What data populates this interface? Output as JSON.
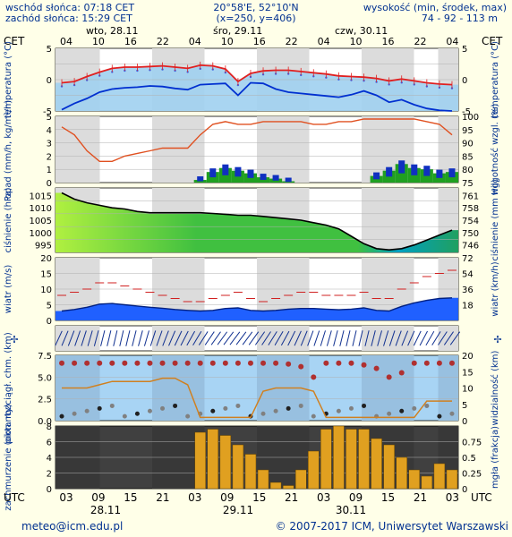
{
  "header": {
    "sunrise": "wschód słońca: 07:18 CET",
    "sunset": "zachód słońca: 15:29 CET",
    "coords": "20°58'E, 52°10'N",
    "grid": "(x=250, y=406)",
    "elevation_label": "wysokość (min, środek, max)",
    "elevation_values": "74 - 92 - 113 m"
  },
  "top_axis": {
    "tz_label": "CET",
    "days": [
      "wto, 28.11",
      "śro, 29.11",
      "czw, 30.11"
    ],
    "hours": [
      "04",
      "10",
      "16",
      "22",
      "04",
      "10",
      "16",
      "22",
      "04",
      "10",
      "16",
      "22",
      "04"
    ]
  },
  "bottom_axis": {
    "tz_label": "UTC",
    "hours": [
      "03",
      "09",
      "15",
      "21",
      "03",
      "09",
      "15",
      "21",
      "03",
      "09",
      "15",
      "21",
      "03"
    ],
    "dates": [
      "28.11",
      "29.11",
      "30.11"
    ]
  },
  "footer": {
    "email": "meteo@icm.edu.pl",
    "copyright": "© 2007-2017 ICM, Uniwersytet Warszawski"
  },
  "colors": {
    "background": "#ffffe8",
    "plot_day": "#ffffff",
    "plot_night": "#dcdcdc",
    "temperature_fill": "#a0d0f0",
    "temperature_line": "#e02020",
    "dewpoint_line": "#0030d0",
    "precip_rain": "#20a020",
    "precip_snow": "#1030c0",
    "humidity_line": "#e05020",
    "pressure_fill": "#40c040",
    "pressure_fill_light": "#b0f040",
    "wind_low": "#2060ff",
    "visibility_line": "#d08020",
    "cloud_bar": "#e0a020"
  },
  "chart_data": [
    {
      "type": "line",
      "panel": "temperatura",
      "ylabel_left": "temperatura (°C)",
      "ylabel_right": "temperatura (°C)",
      "ylim": [
        -5,
        5
      ],
      "y_ticks": [
        "5",
        "0",
        "-5"
      ],
      "series": [
        {
          "values": [
            -0.5,
            -0.3,
            0.5,
            1.2,
            1.8,
            2.0,
            2.0,
            2.1,
            2.2,
            2.0,
            1.8,
            2.3,
            2.2,
            1.7,
            -0.3,
            1.0,
            1.4,
            1.5,
            1.5,
            1.3,
            1.1,
            0.9,
            0.6,
            0.5,
            0.4,
            0.2,
            -0.2,
            0.1,
            -0.2,
            -0.5,
            -0.7,
            -0.8
          ]
        },
        {
          "values": [
            -4.8,
            -3.8,
            -3.0,
            -2.0,
            -1.5,
            -1.3,
            -1.2,
            -1.0,
            -1.1,
            -1.4,
            -1.6,
            -0.8,
            -0.7,
            -0.6,
            -2.5,
            -0.5,
            -0.6,
            -1.5,
            -2.0,
            -2.2,
            -2.4,
            -2.6,
            -2.8,
            -2.4,
            -1.8,
            -2.5,
            -3.6,
            -3.2,
            -4.0,
            -4.6,
            -4.9,
            -5.0
          ]
        }
      ]
    },
    {
      "type": "bar",
      "panel": "opad",
      "ylabel_left": "opad (mm/h, kg/m²/h)",
      "ylabel_right": "wilgotność wzgl. (%)",
      "ylim": [
        0,
        5
      ],
      "ylim_right": [
        75,
        100
      ],
      "y_ticks": [
        "5",
        "4",
        "3",
        "2",
        "1",
        "0"
      ],
      "y_ticks_right": [
        "100",
        "95",
        "90",
        "85",
        "80",
        "75"
      ],
      "series": [
        {
          "values": [
            0,
            0,
            0,
            0,
            0,
            0,
            0,
            0,
            0,
            0,
            0,
            0.2,
            0.8,
            1.1,
            0.9,
            0.7,
            0.4,
            0.3,
            0.1,
            0,
            0,
            0,
            0,
            0,
            0,
            0.5,
            0.9,
            1.4,
            1.1,
            1.0,
            0.7,
            0.8
          ]
        },
        {
          "values": [
            96,
            93,
            87,
            83,
            83,
            85,
            86,
            87,
            88,
            88,
            88,
            93,
            97,
            98,
            97,
            97,
            98,
            98,
            98,
            98,
            97,
            97,
            98,
            98,
            99,
            99,
            99,
            99,
            99,
            98,
            97,
            93
          ]
        }
      ]
    },
    {
      "type": "area",
      "panel": "ciśnienie",
      "ylabel_left": "ciśnienie (hPa)",
      "ylabel_right": "ciśnienie (mm Hg)",
      "ylim": [
        992,
        1018
      ],
      "y_ticks": [
        "1015",
        "1010",
        "1005",
        "1000",
        "995"
      ],
      "y_ticks_right": [
        "761",
        "758",
        "754",
        "750",
        "746"
      ],
      "values": [
        1016.0,
        1013.5,
        1012.0,
        1011.0,
        1010.0,
        1009.5,
        1008.5,
        1008.0,
        1008.0,
        1008.0,
        1008.0,
        1008.0,
        1007.7,
        1007.4,
        1007.0,
        1007.0,
        1006.5,
        1006.0,
        1005.5,
        1005.0,
        1004.0,
        1003.0,
        1001.5,
        998.5,
        995.5,
        993.5,
        993.0,
        993.5,
        995.0,
        997.0,
        999.0,
        1001.0
      ]
    },
    {
      "type": "line",
      "panel": "wiatr",
      "ylabel_left": "wiatr (m/s)",
      "ylabel_right": "wiatr (km/h)",
      "ylim": [
        0,
        20
      ],
      "y_ticks": [
        "20",
        "15",
        "10",
        "5",
        "0"
      ],
      "y_ticks_right": [
        "72",
        "54",
        "36",
        "18"
      ],
      "series": [
        {
          "values": [
            3.0,
            3.5,
            4.2,
            5.2,
            5.4,
            5.0,
            4.6,
            4.2,
            3.9,
            3.5,
            3.2,
            3.0,
            3.2,
            3.8,
            4.0,
            3.2,
            3.0,
            3.2,
            3.6,
            3.8,
            3.8,
            3.6,
            3.4,
            3.6,
            4.0,
            3.2,
            3.0,
            4.5,
            5.6,
            6.4,
            7.0,
            7.2
          ]
        },
        {
          "values": [
            8,
            9,
            10,
            12,
            12,
            11,
            10,
            9,
            8,
            7,
            6,
            6,
            7,
            8,
            9,
            7,
            6,
            7,
            8,
            9,
            9,
            8,
            8,
            8,
            9,
            7,
            7,
            10,
            12,
            14,
            15,
            16
          ]
        }
      ]
    },
    {
      "type": "scatter",
      "panel": "pion. rozciągł. chm.",
      "ylabel_left": "pion. rozciągł. chm. (km)",
      "ylabel_right": "widzialność (km)",
      "ylim": [
        0,
        7.5
      ],
      "ylim_right": [
        0,
        20
      ],
      "y_ticks": [
        "7.5",
        "5.0",
        "2.5",
        "0.0"
      ],
      "y_ticks_right": [
        "20",
        "15",
        "10",
        "5",
        "0"
      ],
      "series": [
        {
          "values": [
            6.6,
            6.6,
            6.6,
            6.6,
            6.6,
            6.6,
            6.6,
            6.6,
            6.6,
            6.6,
            6.6,
            6.6,
            6.6,
            6.6,
            6.6,
            6.6,
            6.6,
            6.6,
            6.5,
            6.2,
            5.0,
            6.6,
            6.6,
            6.6,
            6.4,
            6.0,
            5.0,
            5.5,
            6.6,
            6.6,
            6.6,
            6.6
          ]
        },
        {
          "values": [
            10,
            10,
            10,
            11,
            12,
            12,
            12,
            12,
            13,
            13,
            11,
            1,
            1,
            1,
            1,
            1,
            9,
            10,
            10,
            10,
            9,
            1,
            1,
            1,
            1,
            1,
            1,
            1,
            1,
            6,
            6,
            6
          ]
        }
      ]
    },
    {
      "type": "bar",
      "panel": "zachmurzenie",
      "ylabel_left": "zachmurzenie (oktanty)",
      "ylabel_right": "mgła (frakcja)",
      "ylim": [
        0,
        8
      ],
      "ylim_right": [
        0,
        1
      ],
      "y_ticks": [
        "8",
        "6",
        "4",
        "2",
        "0"
      ],
      "y_ticks_right": [
        "0.75",
        "0.5",
        "0.25",
        "0"
      ],
      "values": [
        0,
        0,
        0,
        0,
        0,
        0,
        0,
        0,
        0,
        0,
        0,
        0.9,
        0.95,
        0.85,
        0.7,
        0.55,
        0.3,
        0.1,
        0.05,
        0.3,
        0.6,
        0.95,
        1.0,
        0.95,
        0.95,
        0.8,
        0.7,
        0.5,
        0.3,
        0.2,
        0.4,
        0.3
      ]
    }
  ]
}
